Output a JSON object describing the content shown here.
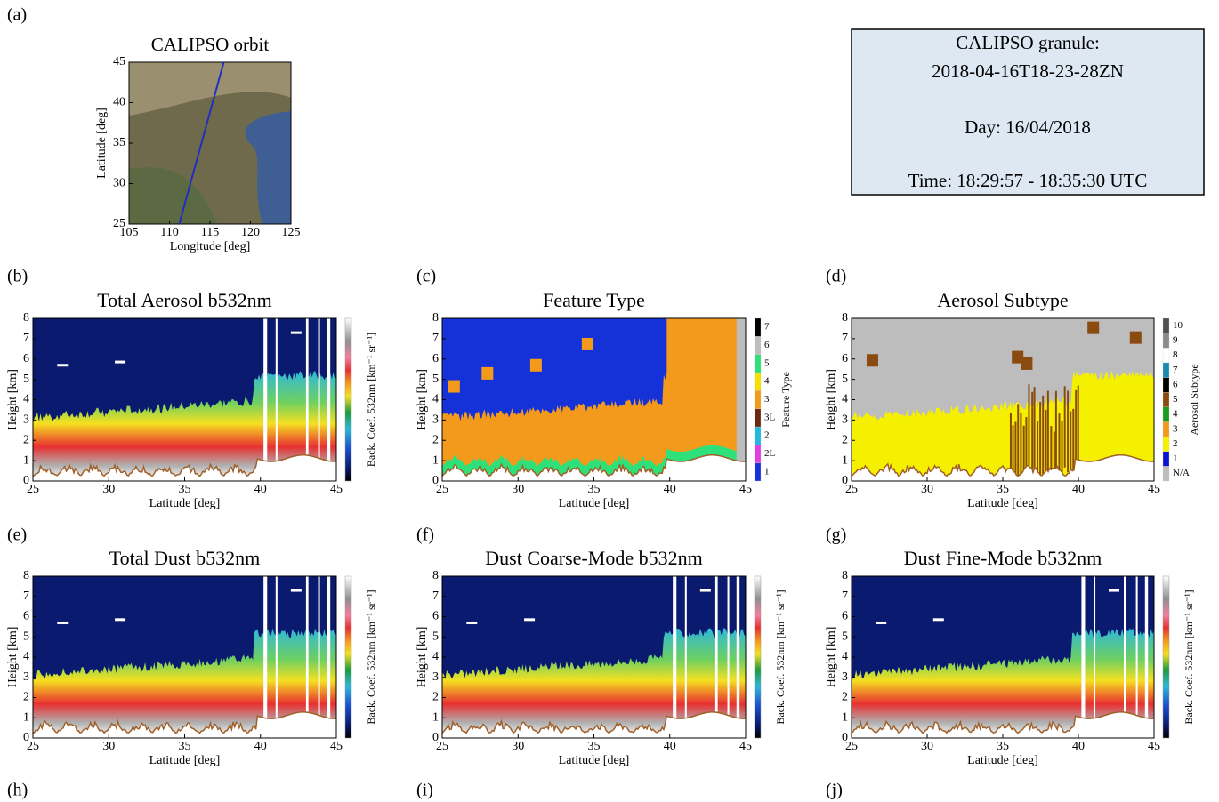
{
  "figure": {
    "panel_labels": [
      "(a)",
      "(b)",
      "(c)",
      "(d)",
      "(e)",
      "(f)",
      "(g)",
      "(h)",
      "(i)",
      "(j)"
    ]
  },
  "info_box": {
    "lines": [
      "CALIPSO granule:",
      "2018-04-16T18-23-28ZN",
      "Day: 16/04/2018",
      "Time: 18:29:57 - 18:35:30 UTC"
    ]
  },
  "chart_data": [
    {
      "type": "map",
      "title": "CALIPSO orbit",
      "xlabel": "Longitude [deg]",
      "ylabel": "Latitude [deg]",
      "xlim": [
        105,
        125
      ],
      "ylim": [
        25,
        45
      ],
      "xticks": [
        105,
        110,
        115,
        120,
        125
      ],
      "yticks": [
        25,
        30,
        35,
        40,
        45
      ],
      "orbit": {
        "x": [
          111.2,
          116.7
        ],
        "y": [
          25,
          45
        ],
        "color": "#1f2fbf"
      }
    },
    {
      "type": "curtain",
      "product": "backscatter",
      "title": "Total Aerosol b532nm",
      "xlabel": "Latitude [deg]",
      "ylabel": "Height [km]",
      "xlim": [
        25,
        45
      ],
      "ylim": [
        0,
        8
      ],
      "xticks": [
        25,
        30,
        35,
        40,
        45
      ],
      "yticks": [
        0,
        1,
        2,
        3,
        4,
        5,
        6,
        7,
        8
      ],
      "colorbar_label": "Back. Coef. 532nm [km⁻¹ sr⁻¹]"
    },
    {
      "type": "curtain",
      "product": "feature_type",
      "title": "Feature Type",
      "xlabel": "Latitude [deg]",
      "ylabel": "Height [km]",
      "xlim": [
        25,
        45
      ],
      "ylim": [
        0,
        8
      ],
      "xticks": [
        25,
        30,
        35,
        40,
        45
      ],
      "yticks": [
        0,
        1,
        2,
        3,
        4,
        5,
        6,
        7,
        8
      ],
      "colorbar_label": "Feature Type",
      "colorbar_ticks": [
        "1",
        "2L",
        "2",
        "3L",
        "3",
        "4",
        "5",
        "6",
        "7"
      ],
      "colorbar_colors": [
        "#1432d8",
        "#e040e0",
        "#22b8e0",
        "#6a2a10",
        "#f39a1c",
        "#f5e000",
        "#2ee07a",
        "#bdbdbd",
        "#000000"
      ]
    },
    {
      "type": "curtain",
      "product": "aerosol_subtype",
      "title": "Aerosol Subtype",
      "xlabel": "Latitude [deg]",
      "ylabel": "Height [km]",
      "xlim": [
        25,
        45
      ],
      "ylim": [
        0,
        8
      ],
      "xticks": [
        25,
        30,
        35,
        40,
        45
      ],
      "yticks": [
        0,
        1,
        2,
        3,
        4,
        5,
        6,
        7,
        8
      ],
      "colorbar_label": "Aerosol Subtype",
      "colorbar_ticks": [
        "N/A",
        "1",
        "2",
        "3",
        "4",
        "5",
        "6",
        "7",
        "8",
        "9",
        "10"
      ],
      "colorbar_colors": [
        "#bdbdbd",
        "#0a14d0",
        "#f5f000",
        "#f39a1c",
        "#1c9a1c",
        "#8a4a10",
        "#000000",
        "#1a8ab0",
        "#ffffff",
        "#8c8c8c",
        "#505050"
      ]
    },
    {
      "type": "curtain",
      "product": "backscatter",
      "title": "Total Dust b532nm",
      "xlabel": "Latitude [deg]",
      "ylabel": "Height [km]",
      "xlim": [
        25,
        45
      ],
      "ylim": [
        0,
        8
      ],
      "xticks": [
        25,
        30,
        35,
        40,
        45
      ],
      "yticks": [
        0,
        1,
        2,
        3,
        4,
        5,
        6,
        7,
        8
      ],
      "colorbar_label": "Back. Coef. 532nm [km⁻¹ sr⁻¹]"
    },
    {
      "type": "curtain",
      "product": "backscatter",
      "title": "Dust Coarse-Mode b532nm",
      "xlabel": "Latitude [deg]",
      "ylabel": "Height [km]",
      "xlim": [
        25,
        45
      ],
      "ylim": [
        0,
        8
      ],
      "xticks": [
        25,
        30,
        35,
        40,
        45
      ],
      "yticks": [
        0,
        1,
        2,
        3,
        4,
        5,
        6,
        7,
        8
      ],
      "colorbar_label": "Back. Coef. 532nm [km⁻¹ sr⁻¹]"
    },
    {
      "type": "curtain",
      "product": "backscatter",
      "title": "Dust Fine-Mode b532nm",
      "xlabel": "Latitude [deg]",
      "ylabel": "Height [km]",
      "xlim": [
        25,
        45
      ],
      "ylim": [
        0,
        8
      ],
      "xticks": [
        25,
        30,
        35,
        40,
        45
      ],
      "yticks": [
        0,
        1,
        2,
        3,
        4,
        5,
        6,
        7,
        8
      ],
      "colorbar_label": "Back. Coef. 532nm [km⁻¹ sr⁻¹]"
    }
  ]
}
